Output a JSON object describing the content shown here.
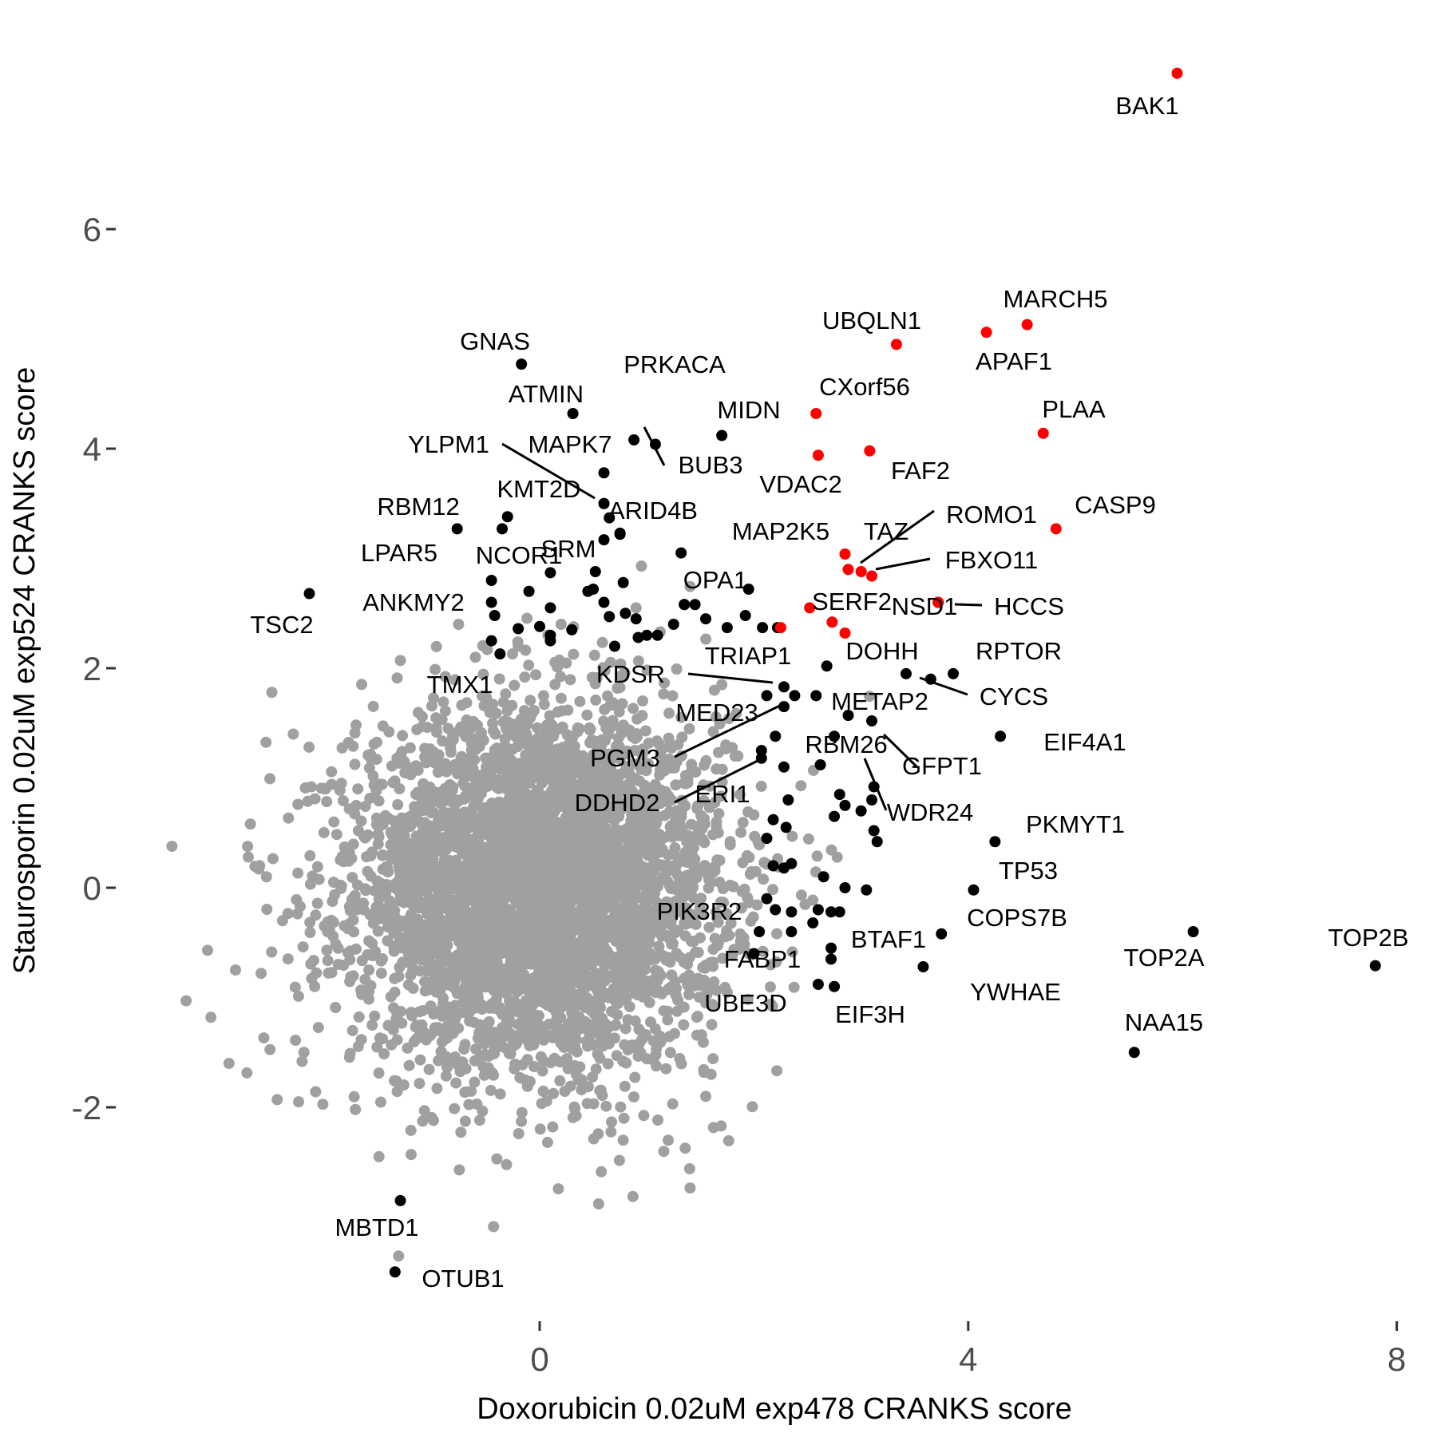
{
  "chart_data": {
    "type": "scatter",
    "title": "",
    "xlabel": "Doxorubicin 0.02uM exp478 CRANKS score",
    "ylabel": "Staurosporin 0.02uM exp524 CRANKS score",
    "xlim": [
      -3.4,
      8.15
    ],
    "ylim": [
      -3.95,
      7.45
    ],
    "xticks": [
      0,
      4,
      8
    ],
    "xtick_labels": [
      "0",
      "4",
      "8"
    ],
    "yticks": [
      -2,
      0,
      2,
      4,
      6
    ],
    "ytick_labels": [
      "-2",
      "0",
      "2",
      "4",
      "6"
    ],
    "grid": false,
    "legend": "none",
    "colors": {
      "background": "#ffffff",
      "cloud": "#a0a0a0",
      "highlight": "#ff0000",
      "labeled": "#000000"
    },
    "cloud": {
      "description_free": true,
      "center": [
        0.0,
        0.0
      ],
      "sd": [
        0.85,
        0.8
      ],
      "n_core": 4500,
      "outliers": [
        [
          -2.5,
          1.78
        ],
        [
          -2.7,
          0.58
        ],
        [
          -2.72,
          0.28
        ],
        [
          -3.3,
          -1.03
        ],
        [
          -3.1,
          -0.57
        ],
        [
          -2.6,
          -0.78
        ],
        [
          -2.4,
          -0.3
        ],
        [
          -2.45,
          -1.93
        ],
        [
          -2.25,
          -1.95
        ],
        [
          -1.72,
          -2.02
        ],
        [
          -1.5,
          -2.45
        ],
        [
          -1.2,
          -2.43
        ],
        [
          -0.75,
          -2.57
        ],
        [
          -0.4,
          -2.47
        ],
        [
          0.55,
          -2.88
        ],
        [
          1.4,
          -2.56
        ],
        [
          1.6,
          -1.7
        ],
        [
          1.55,
          -1.9
        ],
        [
          1.55,
          -1.05
        ],
        [
          -1.3,
          2.07
        ],
        [
          -0.2,
          2.2
        ],
        [
          0.95,
          2.93
        ],
        [
          1.85,
          1.2
        ],
        [
          1.95,
          -0.6
        ],
        [
          -2.3,
          1.4
        ],
        [
          -2.55,
          0.1
        ],
        [
          -2.9,
          -1.6
        ],
        [
          -2.2,
          -1.5
        ],
        [
          0.2,
          2.4
        ],
        [
          -0.6,
          2.1
        ],
        [
          1.2,
          -2.3
        ],
        [
          0.9,
          2.55
        ],
        [
          1.7,
          1.85
        ],
        [
          -2.0,
          0.9
        ],
        [
          -2.1,
          -0.9
        ]
      ]
    },
    "highlight_points": [
      {
        "name": "BAK1",
        "x": 5.95,
        "y": 7.42
      },
      {
        "name": "MARCH5",
        "x": 4.55,
        "y": 5.13
      },
      {
        "name": "APAF1",
        "x": 4.17,
        "y": 5.06
      },
      {
        "name": "UBQLN1",
        "x": 3.33,
        "y": 4.95
      },
      {
        "name": "PLAA",
        "x": 4.7,
        "y": 4.14
      },
      {
        "name": "CXorf56",
        "x": 2.58,
        "y": 4.32
      },
      {
        "name": "FAF2",
        "x": 3.08,
        "y": 3.98
      },
      {
        "name": "VDAC2",
        "x": 2.6,
        "y": 3.94
      },
      {
        "name": "CASP9",
        "x": 4.82,
        "y": 3.27
      },
      {
        "name": "MAP2K5",
        "x": 2.85,
        "y": 3.04
      },
      {
        "name": "TAZ",
        "x": 2.88,
        "y": 2.9
      },
      {
        "name": "ROMO1",
        "x": 3.0,
        "y": 2.88
      },
      {
        "name": "FBXO11",
        "x": 3.1,
        "y": 2.84
      },
      {
        "name": "NSD1",
        "x": 3.72,
        "y": 2.6
      },
      {
        "name": "SERF2",
        "x": 2.52,
        "y": 2.55
      },
      {
        "name": "",
        "x": 2.73,
        "y": 2.42
      },
      {
        "name": "",
        "x": 2.25,
        "y": 2.37
      },
      {
        "name": "",
        "x": 2.85,
        "y": 2.32
      }
    ],
    "labeled_points": [
      {
        "name": "GNAS",
        "x": -0.17,
        "y": 4.77
      },
      {
        "name": "ATMIN",
        "x": 0.31,
        "y": 4.32
      },
      {
        "name": "PRKACA",
        "x": 0.88,
        "y": 4.08
      },
      {
        "name": "MIDN",
        "x": 1.7,
        "y": 4.12
      },
      {
        "name": "BUB3",
        "x": 1.08,
        "y": 4.04
      },
      {
        "name": "MAPK7",
        "x": 0.6,
        "y": 3.78
      },
      {
        "name": "ARID4B",
        "x": 0.6,
        "y": 3.5
      },
      {
        "name": "KMT2D",
        "x": -0.3,
        "y": 3.38
      },
      {
        "name": "RBM12",
        "x": -0.77,
        "y": 3.27
      },
      {
        "name": "NCOR1",
        "x": -0.35,
        "y": 3.27
      },
      {
        "name": "SRM",
        "x": 0.75,
        "y": 3.23
      },
      {
        "name": "OPA1",
        "x": 1.32,
        "y": 3.05
      },
      {
        "name": "TSC2",
        "x": -2.15,
        "y": 2.68
      },
      {
        "name": "ANKMY2",
        "x": -0.45,
        "y": 2.8
      },
      {
        "name": "RPTOR",
        "x": 3.86,
        "y": 1.95
      },
      {
        "name": "DOHH",
        "x": 3.42,
        "y": 1.95
      },
      {
        "name": "TRIAP1",
        "x": 2.68,
        "y": 2.02
      },
      {
        "name": "KDSR",
        "x": 2.28,
        "y": 1.83
      },
      {
        "name": "TMX1",
        "x": -0.37,
        "y": 2.13
      },
      {
        "name": "MED23",
        "x": 2.38,
        "y": 1.75
      },
      {
        "name": "METAP2",
        "x": 2.58,
        "y": 1.75
      },
      {
        "name": "PGM3",
        "x": 2.28,
        "y": 1.65
      },
      {
        "name": "CYCS",
        "x": 3.65,
        "y": 1.9
      },
      {
        "name": "RBM26",
        "x": 2.88,
        "y": 1.57
      },
      {
        "name": "GFPT1",
        "x": 3.1,
        "y": 1.52
      },
      {
        "name": "EIF4A1",
        "x": 4.3,
        "y": 1.38
      },
      {
        "name": "ERI1",
        "x": 2.07,
        "y": 1.25
      },
      {
        "name": "DDHD2",
        "x": 2.07,
        "y": 1.18
      },
      {
        "name": "WDR24",
        "x": 3.12,
        "y": 0.92
      },
      {
        "name": "PKMYT1",
        "x": 4.25,
        "y": 0.42
      },
      {
        "name": "TP53",
        "x": 4.05,
        "y": -0.02
      },
      {
        "name": "PIK3R2",
        "x": 2.12,
        "y": -0.1
      },
      {
        "name": "COPS7B",
        "x": 3.75,
        "y": -0.42
      },
      {
        "name": "BTAF1",
        "x": 2.72,
        "y": -0.55
      },
      {
        "name": "FABP1",
        "x": 2.05,
        "y": -0.4
      },
      {
        "name": "TOP2A",
        "x": 6.1,
        "y": -0.4
      },
      {
        "name": "TOP2B",
        "x": 7.8,
        "y": -0.71
      },
      {
        "name": "YWHAE",
        "x": 3.58,
        "y": -0.72
      },
      {
        "name": "UBE3D",
        "x": 2.6,
        "y": -0.88
      },
      {
        "name": "EIF3H",
        "x": 2.75,
        "y": -0.9
      },
      {
        "name": "NAA15",
        "x": 5.55,
        "y": -1.5
      },
      {
        "name": "MBTD1",
        "x": -1.3,
        "y": -2.85
      },
      {
        "name": "OTUB1",
        "x": -1.35,
        "y": -3.5
      },
      {
        "name": "YLPM1",
        "x": 0.6,
        "y": 3.5
      },
      {
        "name": "LPAR5",
        "x": -0.45,
        "y": 2.6
      },
      {
        "name": "HCCS",
        "x": 3.72,
        "y": 2.6
      }
    ],
    "unlabeled_black_points": [
      [
        0.65,
        3.37
      ],
      [
        0.75,
        3.22
      ],
      [
        0.6,
        3.17
      ],
      [
        0.52,
        2.88
      ],
      [
        0.78,
        2.78
      ],
      [
        0.5,
        2.72
      ],
      [
        0.45,
        2.7
      ],
      [
        0.1,
        2.87
      ],
      [
        -0.1,
        2.7
      ],
      [
        0.1,
        2.55
      ],
      [
        0.6,
        2.6
      ],
      [
        0.8,
        2.5
      ],
      [
        0.65,
        2.47
      ],
      [
        0.9,
        2.45
      ],
      [
        1.0,
        2.3
      ],
      [
        0.92,
        2.28
      ],
      [
        1.1,
        2.3
      ],
      [
        1.25,
        2.4
      ],
      [
        1.35,
        2.58
      ],
      [
        1.45,
        2.58
      ],
      [
        1.55,
        2.45
      ],
      [
        1.75,
        2.37
      ],
      [
        1.92,
        2.48
      ],
      [
        2.08,
        2.37
      ],
      [
        1.95,
        2.72
      ],
      [
        -0.42,
        2.48
      ],
      [
        -0.2,
        2.36
      ],
      [
        0.0,
        2.38
      ],
      [
        0.1,
        2.3
      ],
      [
        0.3,
        2.35
      ],
      [
        0.1,
        2.25
      ],
      [
        0.7,
        2.2
      ],
      [
        -0.45,
        2.25
      ],
      [
        1.35,
        2.58
      ],
      [
        2.22,
        2.37
      ],
      [
        2.12,
        1.75
      ],
      [
        2.2,
        1.38
      ],
      [
        2.28,
        1.1
      ],
      [
        2.32,
        0.8
      ],
      [
        2.18,
        0.62
      ],
      [
        2.3,
        0.55
      ],
      [
        2.12,
        0.45
      ],
      [
        2.18,
        0.2
      ],
      [
        2.28,
        0.18
      ],
      [
        2.35,
        0.22
      ],
      [
        2.62,
        1.12
      ],
      [
        2.75,
        1.38
      ],
      [
        2.8,
        0.85
      ],
      [
        2.85,
        0.75
      ],
      [
        2.75,
        0.65
      ],
      [
        3.0,
        0.7
      ],
      [
        3.1,
        0.8
      ],
      [
        3.12,
        0.52
      ],
      [
        3.15,
        0.42
      ],
      [
        2.65,
        0.1
      ],
      [
        2.85,
        0.0
      ],
      [
        3.05,
        -0.02
      ],
      [
        2.2,
        -0.2
      ],
      [
        2.35,
        -0.22
      ],
      [
        2.6,
        -0.2
      ],
      [
        2.72,
        -0.22
      ],
      [
        2.8,
        -0.22
      ],
      [
        2.55,
        -0.32
      ],
      [
        2.35,
        -0.4
      ],
      [
        2.72,
        -0.65
      ],
      [
        2.0,
        -0.6
      ]
    ]
  }
}
